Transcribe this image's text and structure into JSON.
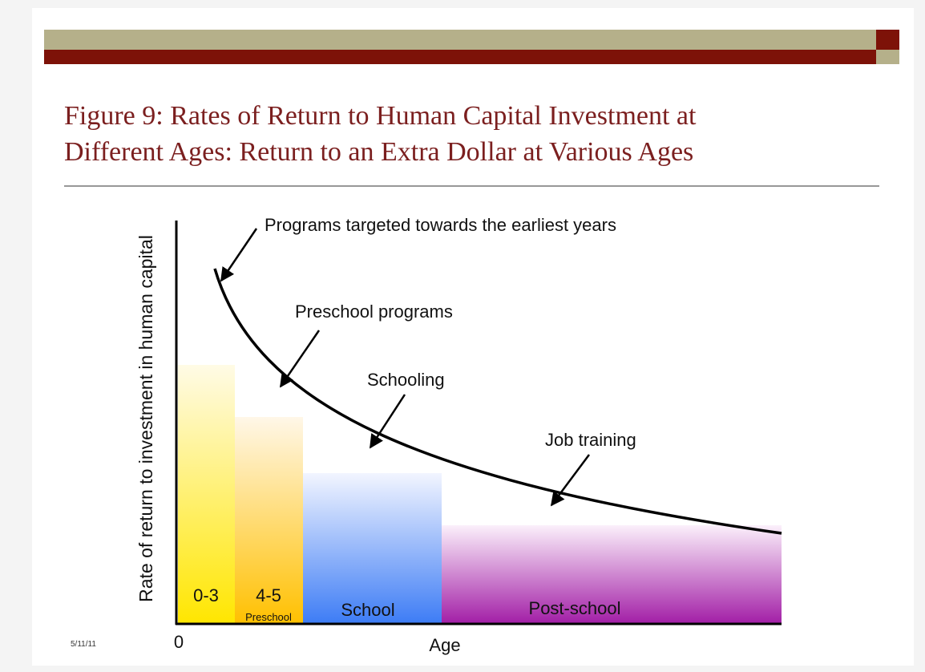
{
  "header": {
    "title_lines": [
      "Figure 9:  Rates of Return to Human Capital Investment at",
      "Different Ages: Return to an Extra Dollar at Various Ages"
    ]
  },
  "figure": {
    "y_axis_label": "Rate of return to investment in human capital",
    "x_axis_label": "Age",
    "origin_label": "0",
    "annotations": [
      "Programs targeted towards the earliest years",
      "Preschool programs",
      "Schooling",
      "Job training"
    ],
    "regions": [
      {
        "label": "0-3"
      },
      {
        "label": "4-5",
        "sublabel": "Preschool"
      },
      {
        "label": "School"
      },
      {
        "label": "Post-school"
      }
    ]
  },
  "footer": {
    "date": "5/11/11"
  }
}
